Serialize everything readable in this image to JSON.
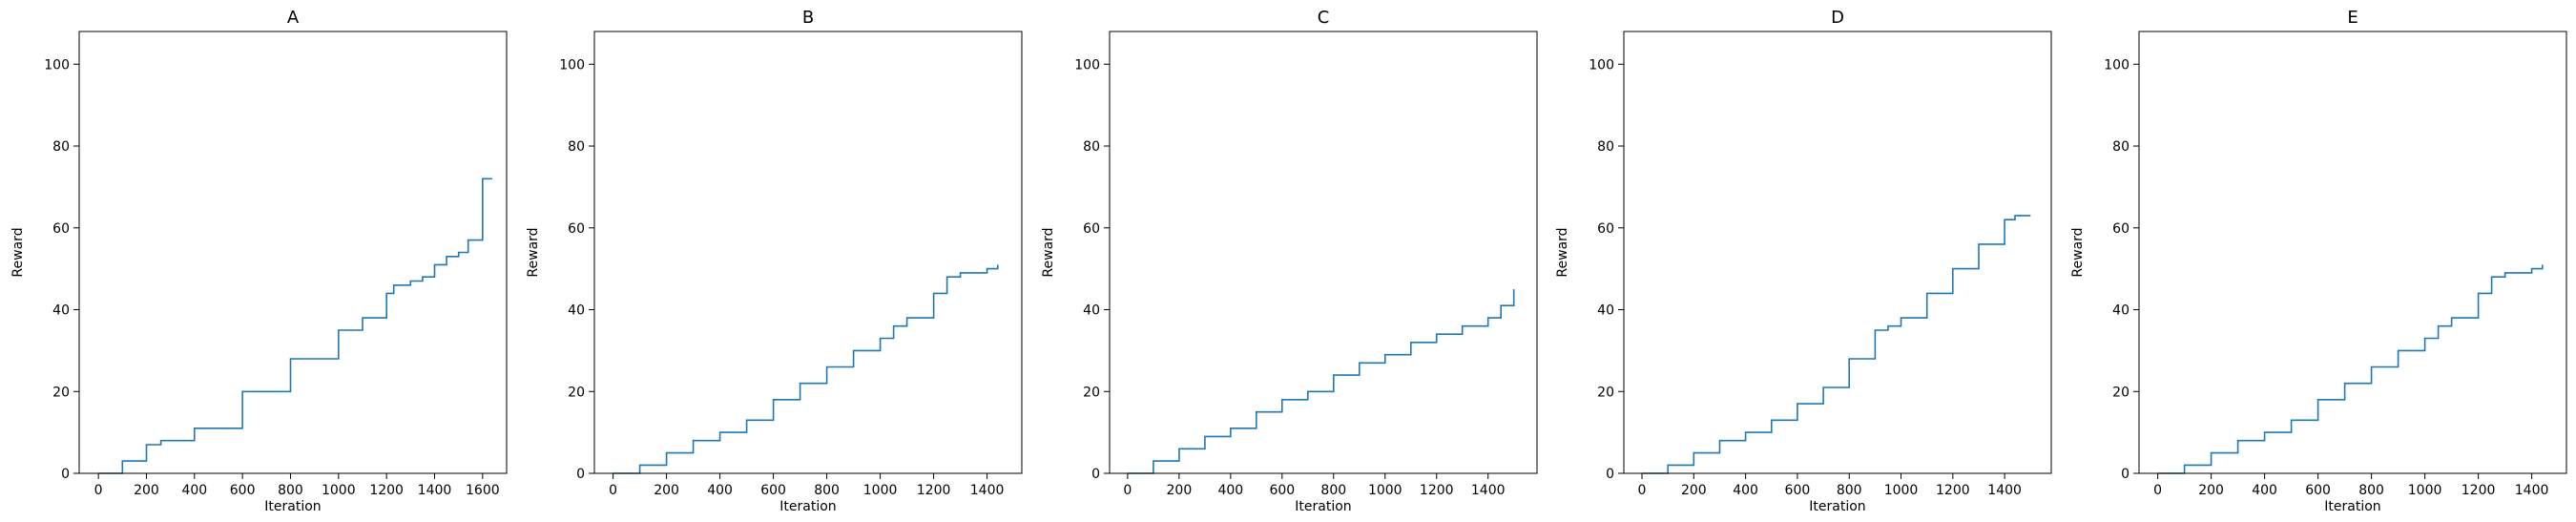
{
  "chart_data": [
    {
      "type": "line",
      "title": "A",
      "xlabel": "Iteration",
      "ylabel": "Reward",
      "xlim": [
        -80,
        1700
      ],
      "ylim": [
        0,
        108
      ],
      "xticks": [
        0,
        200,
        400,
        600,
        800,
        1000,
        1200,
        1400,
        1600
      ],
      "yticks": [
        0,
        20,
        40,
        60,
        80,
        100
      ],
      "grid": false,
      "series": [
        {
          "color": "#1f77b4",
          "x": [
            0,
            100,
            200,
            260,
            400,
            600,
            800,
            1000,
            1100,
            1200,
            1230,
            1300,
            1350,
            1400,
            1450,
            1500,
            1540,
            1600,
            1640
          ],
          "y": [
            0,
            3,
            7,
            8,
            11,
            20,
            28,
            35,
            38,
            44,
            46,
            47,
            48,
            51,
            53,
            54,
            57,
            72,
            72
          ]
        }
      ]
    },
    {
      "type": "line",
      "title": "B",
      "xlabel": "Iteration",
      "ylabel": "Reward",
      "xlim": [
        -70,
        1530
      ],
      "ylim": [
        0,
        108
      ],
      "xticks": [
        0,
        200,
        400,
        600,
        800,
        1000,
        1200,
        1400
      ],
      "yticks": [
        0,
        20,
        40,
        60,
        80,
        100
      ],
      "grid": false,
      "series": [
        {
          "color": "#1f77b4",
          "x": [
            0,
            100,
            200,
            300,
            400,
            500,
            600,
            700,
            800,
            900,
            1000,
            1050,
            1100,
            1200,
            1250,
            1300,
            1350,
            1400,
            1440
          ],
          "y": [
            0,
            2,
            5,
            8,
            10,
            13,
            18,
            22,
            26,
            30,
            33,
            36,
            38,
            44,
            48,
            49,
            49,
            50,
            51
          ]
        }
      ]
    },
    {
      "type": "line",
      "title": "C",
      "xlabel": "Iteration",
      "ylabel": "Reward",
      "xlim": [
        -70,
        1590
      ],
      "ylim": [
        0,
        108
      ],
      "xticks": [
        0,
        200,
        400,
        600,
        800,
        1000,
        1200,
        1400
      ],
      "yticks": [
        0,
        20,
        40,
        60,
        80,
        100
      ],
      "grid": false,
      "series": [
        {
          "color": "#1f77b4",
          "x": [
            0,
            100,
            200,
            300,
            400,
            500,
            600,
            700,
            800,
            900,
            1000,
            1100,
            1200,
            1300,
            1400,
            1450,
            1500
          ],
          "y": [
            0,
            3,
            6,
            9,
            11,
            15,
            18,
            20,
            24,
            27,
            29,
            32,
            34,
            36,
            38,
            41,
            45
          ]
        }
      ]
    },
    {
      "type": "line",
      "title": "D",
      "xlabel": "Iteration",
      "ylabel": "Reward",
      "xlim": [
        -70,
        1580
      ],
      "ylim": [
        0,
        108
      ],
      "xticks": [
        0,
        200,
        400,
        600,
        800,
        1000,
        1200,
        1400
      ],
      "yticks": [
        0,
        20,
        40,
        60,
        80,
        100
      ],
      "grid": false,
      "series": [
        {
          "color": "#1f77b4",
          "x": [
            0,
            100,
            200,
            300,
            400,
            500,
            600,
            700,
            800,
            900,
            950,
            1000,
            1100,
            1200,
            1300,
            1400,
            1440,
            1500
          ],
          "y": [
            0,
            2,
            5,
            8,
            10,
            13,
            17,
            21,
            28,
            35,
            36,
            38,
            44,
            50,
            56,
            62,
            63,
            63
          ]
        }
      ]
    },
    {
      "type": "line",
      "title": "E",
      "xlabel": "Iteration",
      "ylabel": "Reward",
      "xlim": [
        -70,
        1530
      ],
      "ylim": [
        0,
        108
      ],
      "xticks": [
        0,
        200,
        400,
        600,
        800,
        1000,
        1200,
        1400
      ],
      "yticks": [
        0,
        20,
        40,
        60,
        80,
        100
      ],
      "grid": false,
      "series": [
        {
          "color": "#1f77b4",
          "x": [
            0,
            100,
            200,
            300,
            400,
            500,
            600,
            700,
            800,
            900,
            1000,
            1050,
            1100,
            1200,
            1250,
            1300,
            1350,
            1400,
            1440
          ],
          "y": [
            0,
            2,
            5,
            8,
            10,
            13,
            18,
            22,
            26,
            30,
            33,
            36,
            38,
            44,
            48,
            49,
            49,
            50,
            51
          ]
        }
      ]
    }
  ]
}
